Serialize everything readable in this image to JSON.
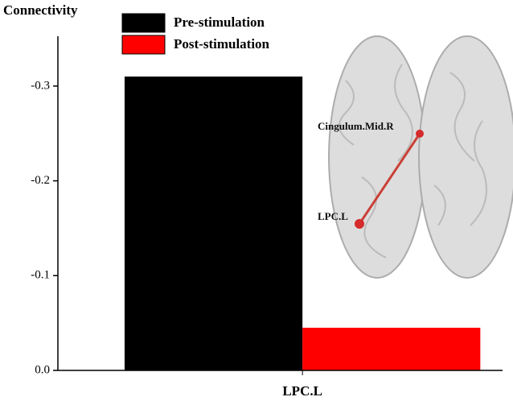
{
  "chart_data": {
    "type": "bar",
    "title": "Connectivity",
    "categories": [
      "LPC.L"
    ],
    "series": [
      {
        "name": "Pre-stimulation",
        "color": "#000000",
        "values": [
          -0.31
        ]
      },
      {
        "name": "Post-stimulation",
        "color": "#ff0000",
        "values": [
          -0.045
        ]
      }
    ],
    "ylim": [
      0,
      -0.35
    ],
    "yticks": [
      {
        "value": 0,
        "label": "0.0"
      },
      -0.1,
      -0.2,
      -0.3
    ],
    "annotations": [
      "Cingulum.Mid.R",
      "LPC.L"
    ]
  }
}
